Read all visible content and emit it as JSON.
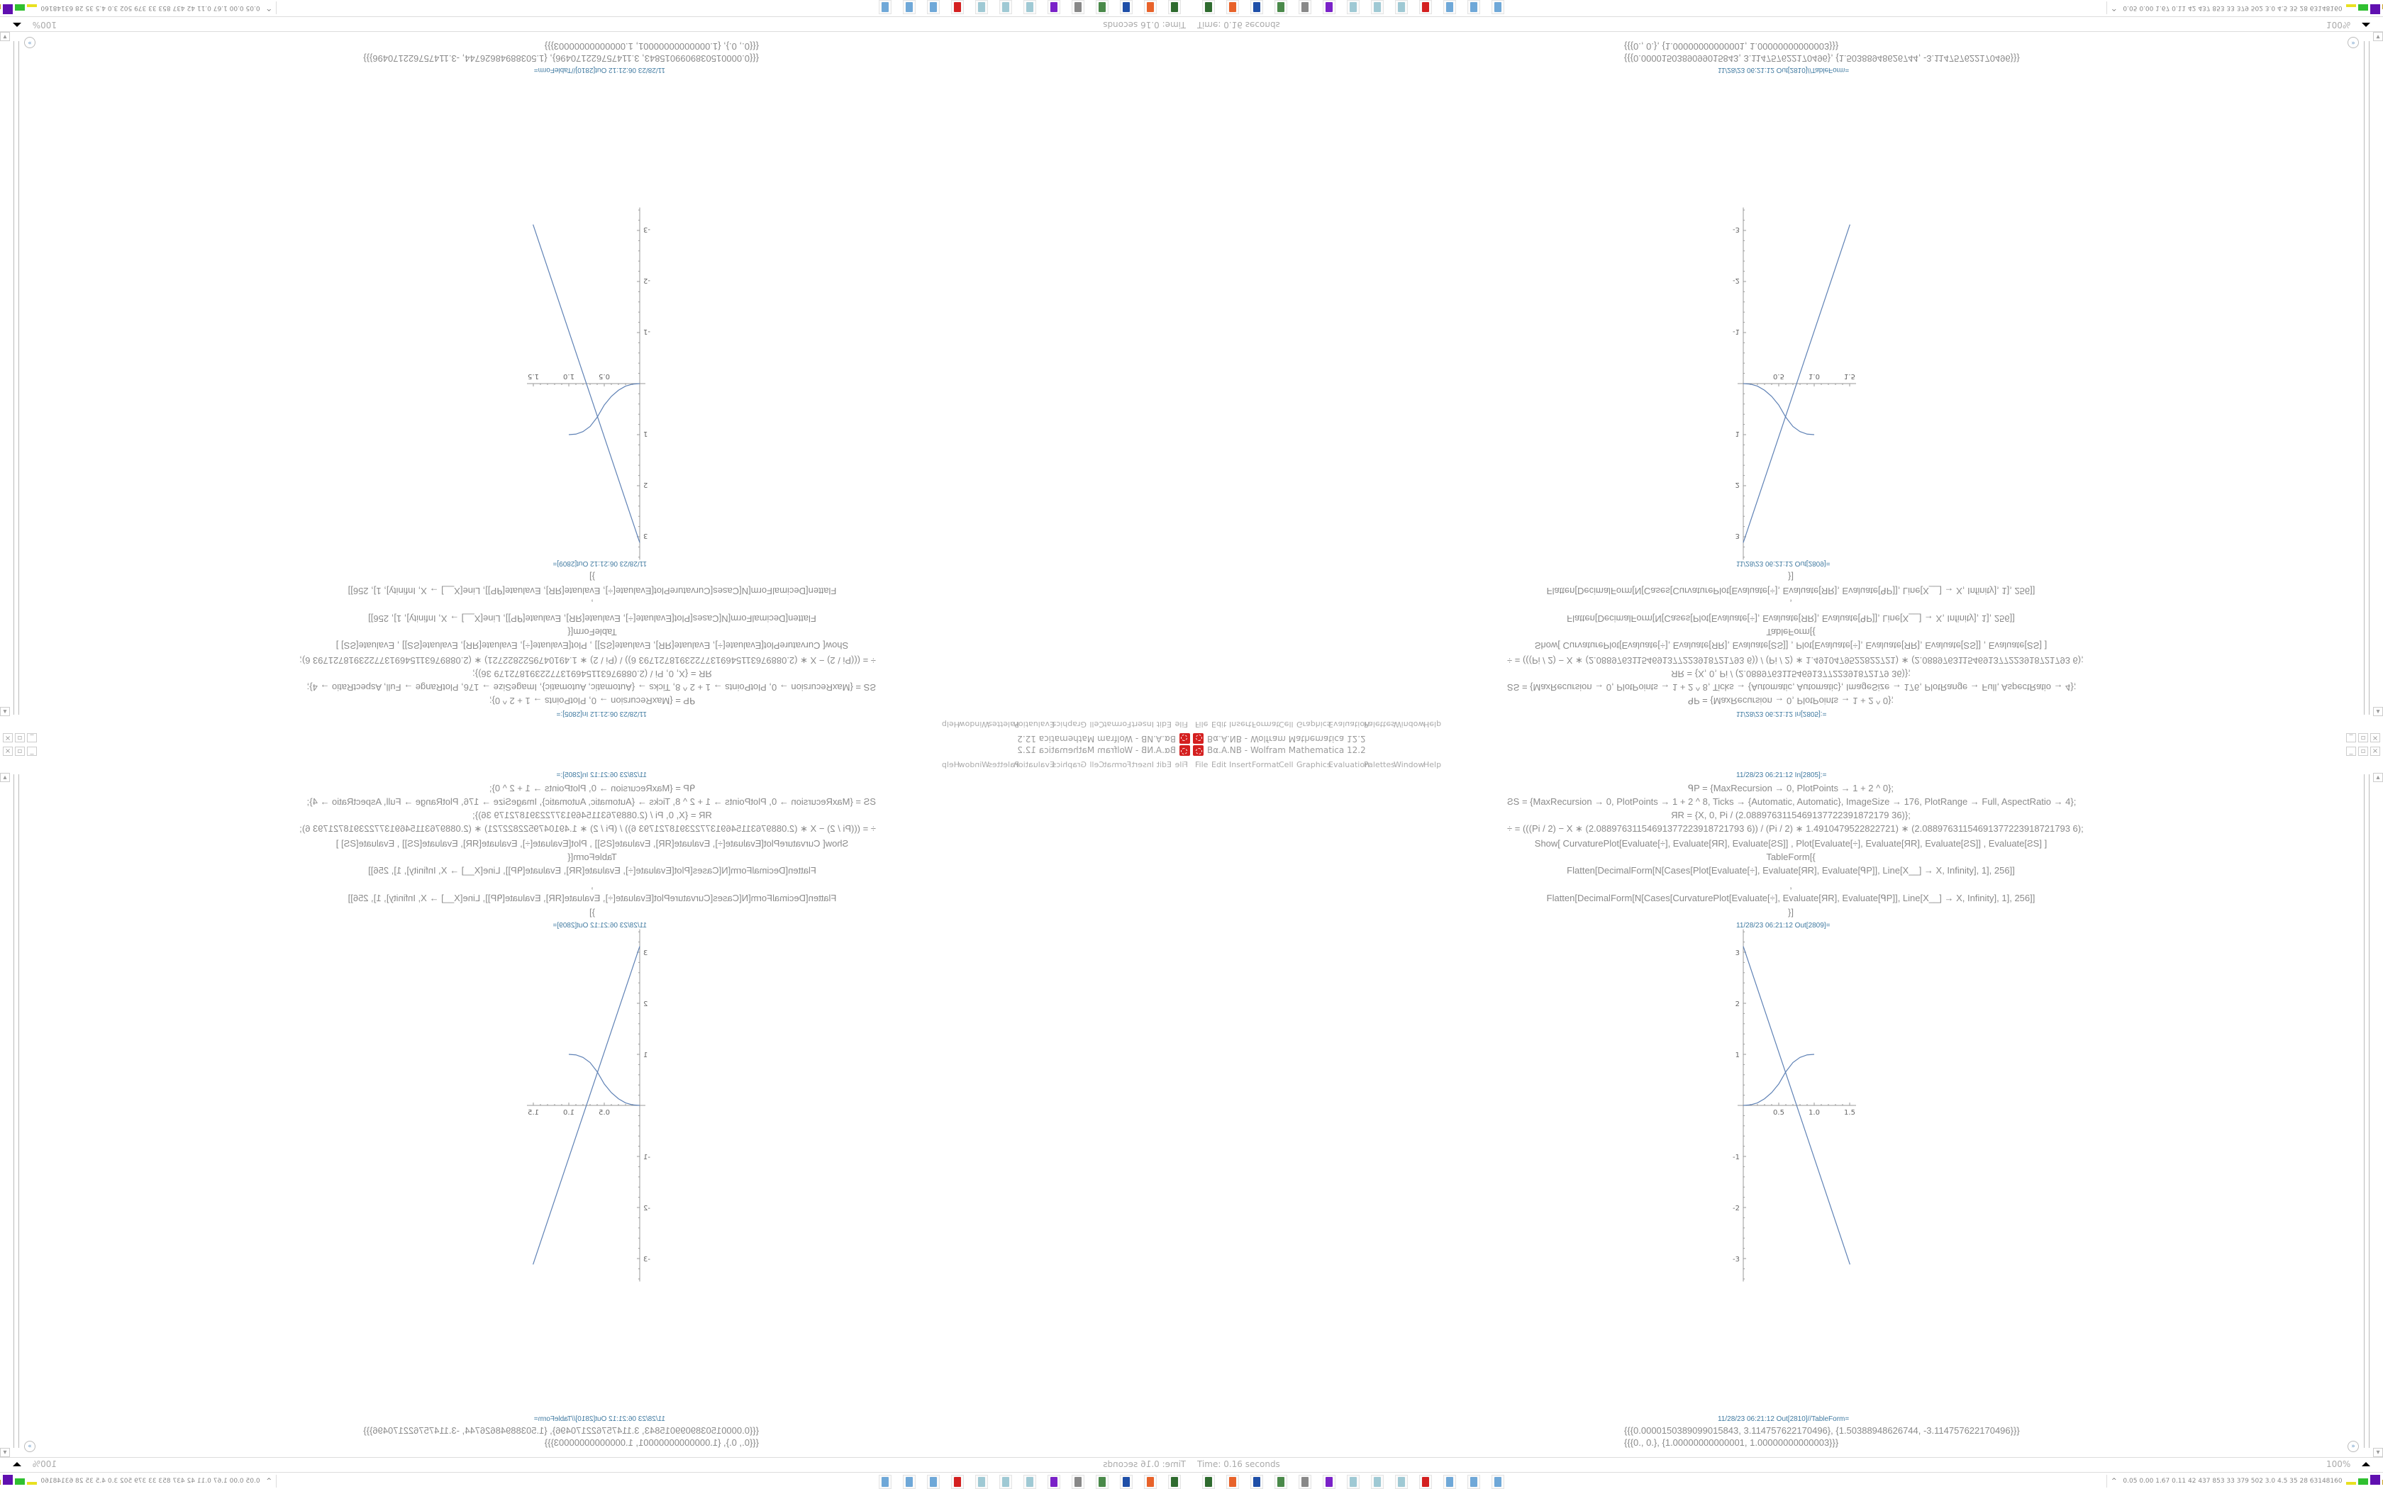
{
  "window": {
    "title": "Bα.A.NB - Wolfram Mathematica 12.2",
    "controls": [
      "minimize",
      "restore",
      "close"
    ]
  },
  "menu": [
    "File",
    "Edit",
    "Insert",
    "Format",
    "Cell",
    "Graphics",
    "Evaluation",
    "Palettes",
    "Window",
    "Help"
  ],
  "notebook": {
    "in_label": "11/28/23 06:21:12 In[2805]:=",
    "code_lines": [
      "ᑫP = {MaxRecursion → 0, PlotPoints → 1 + 2 ^ 0};",
      "ƧS = {MaxRecursion → 0, PlotPoints → 1 + 2 ^ 8, Ticks → {Automatic, Automatic}, ImageSize → 176, PlotRange → Full, AspectRatio → 4};",
      "ЯR = {X, 0, Pi / (2.0889763115469137722391872179 36)};",
      "÷ = (((Pi / 2) − X ∗ (2.08897631154691377223918721793 6)) / (Pi / 2) ∗ 1.4910479522822721) ∗ (2.08897631154691377223918721793 6);",
      "Show[   CurvaturePlot[Evaluate[÷], Evaluate[ЯR], Evaluate[ƧS]]   ,    Plot[Evaluate[÷], Evaluate[ЯR], Evaluate[ƧS]]   ,    Evaluate[ƧS]   ]",
      "TableForm[{",
      "Flatten[DecimalForm[N[Cases[Plot[Evaluate[÷], Evaluate[ЯR], Evaluate[ᑫP]], Line[X__] → X, Infinity], 1], 256]]",
      ",",
      "Flatten[DecimalForm[N[Cases[CurvaturePlot[Evaluate[÷], Evaluate[ЯR], Evaluate[ᑫP]], Line[X__] → X, Infinity], 1], 256]]",
      "}]"
    ],
    "out_plot_label": "11/28/23 06:21:12 Out[2809]=",
    "out_table_label": "11/28/23 06:21:12 Out[2810]//TableForm=",
    "out_table_rows": [
      "{{{0.0000150389099015843, 3.114757622170496}, {1.50388948626744, -3.114757622170496}}}",
      "{{{0., 0.}, {1.00000000000001, 1.00000000000003}}}"
    ],
    "plot": {
      "x_ticks": [
        "0.5",
        "1.0",
        "1.5"
      ],
      "x_tick_values": [
        0.5,
        1.0,
        1.5
      ],
      "y_ticks": [
        "3",
        "2",
        "1",
        "-1",
        "-2",
        "-3"
      ],
      "y_tick_values": [
        3,
        2,
        1,
        -1,
        -2,
        -3
      ],
      "xlim": [
        -0.08,
        1.59
      ],
      "ylim": [
        -3.45,
        3.45
      ],
      "series": [
        {
          "points": [
            [
              1.50389099015843e-05,
              3.114757622170496
            ],
            [
              1.50388948626744,
              -3.114757622170496
            ]
          ]
        },
        {
          "points": [
            [
              0,
              0
            ],
            [
              0.1,
              0.01
            ],
            [
              0.2,
              0.05
            ],
            [
              0.3,
              0.13
            ],
            [
              0.4,
              0.25
            ],
            [
              0.5,
              0.42
            ],
            [
              0.6,
              0.66
            ],
            [
              0.7,
              0.84
            ],
            [
              0.8,
              0.94
            ],
            [
              0.9,
              0.99
            ],
            [
              1,
              1
            ]
          ]
        }
      ],
      "line_color": "#5e81b5"
    }
  },
  "status": {
    "time": "Time: 0.16 seconds",
    "zoom": "100%"
  },
  "taskbar": {
    "icons": [
      {
        "name": "terminal-icon",
        "color": "#2f6b2f"
      },
      {
        "name": "firefox-icon",
        "color": "#e8622a"
      },
      {
        "name": "floppy-disk-icon",
        "color": "#1f4fa8"
      },
      {
        "name": "monitor-icon",
        "color": "#4a8a4a"
      },
      {
        "name": "speaker-icon",
        "color": "#888888"
      },
      {
        "name": "ghost-app-icon",
        "color": "#7a22c8"
      },
      {
        "name": "notepad-icon",
        "color": "#9fc9d4"
      },
      {
        "name": "notepad-icon",
        "color": "#9fc9d4"
      },
      {
        "name": "notepad-icon",
        "color": "#9fc9d4"
      },
      {
        "name": "mathematica-icon",
        "color": "#d42020"
      },
      {
        "name": "calculator-icon",
        "color": "#6fa8d8"
      },
      {
        "name": "calculator-icon",
        "color": "#6fa8d8"
      },
      {
        "name": "calculator-icon",
        "color": "#6fa8d8"
      }
    ],
    "tray_text": "0.05 0.00 1.67 0.11  42   437  853  33  379  502  3.0  4.5  35  28  63148160",
    "tray_graph_colors": [
      "#e8e020",
      "#30c030",
      "#6010b0",
      "#c8a020",
      "#8a4010",
      "#c02020"
    ]
  }
}
